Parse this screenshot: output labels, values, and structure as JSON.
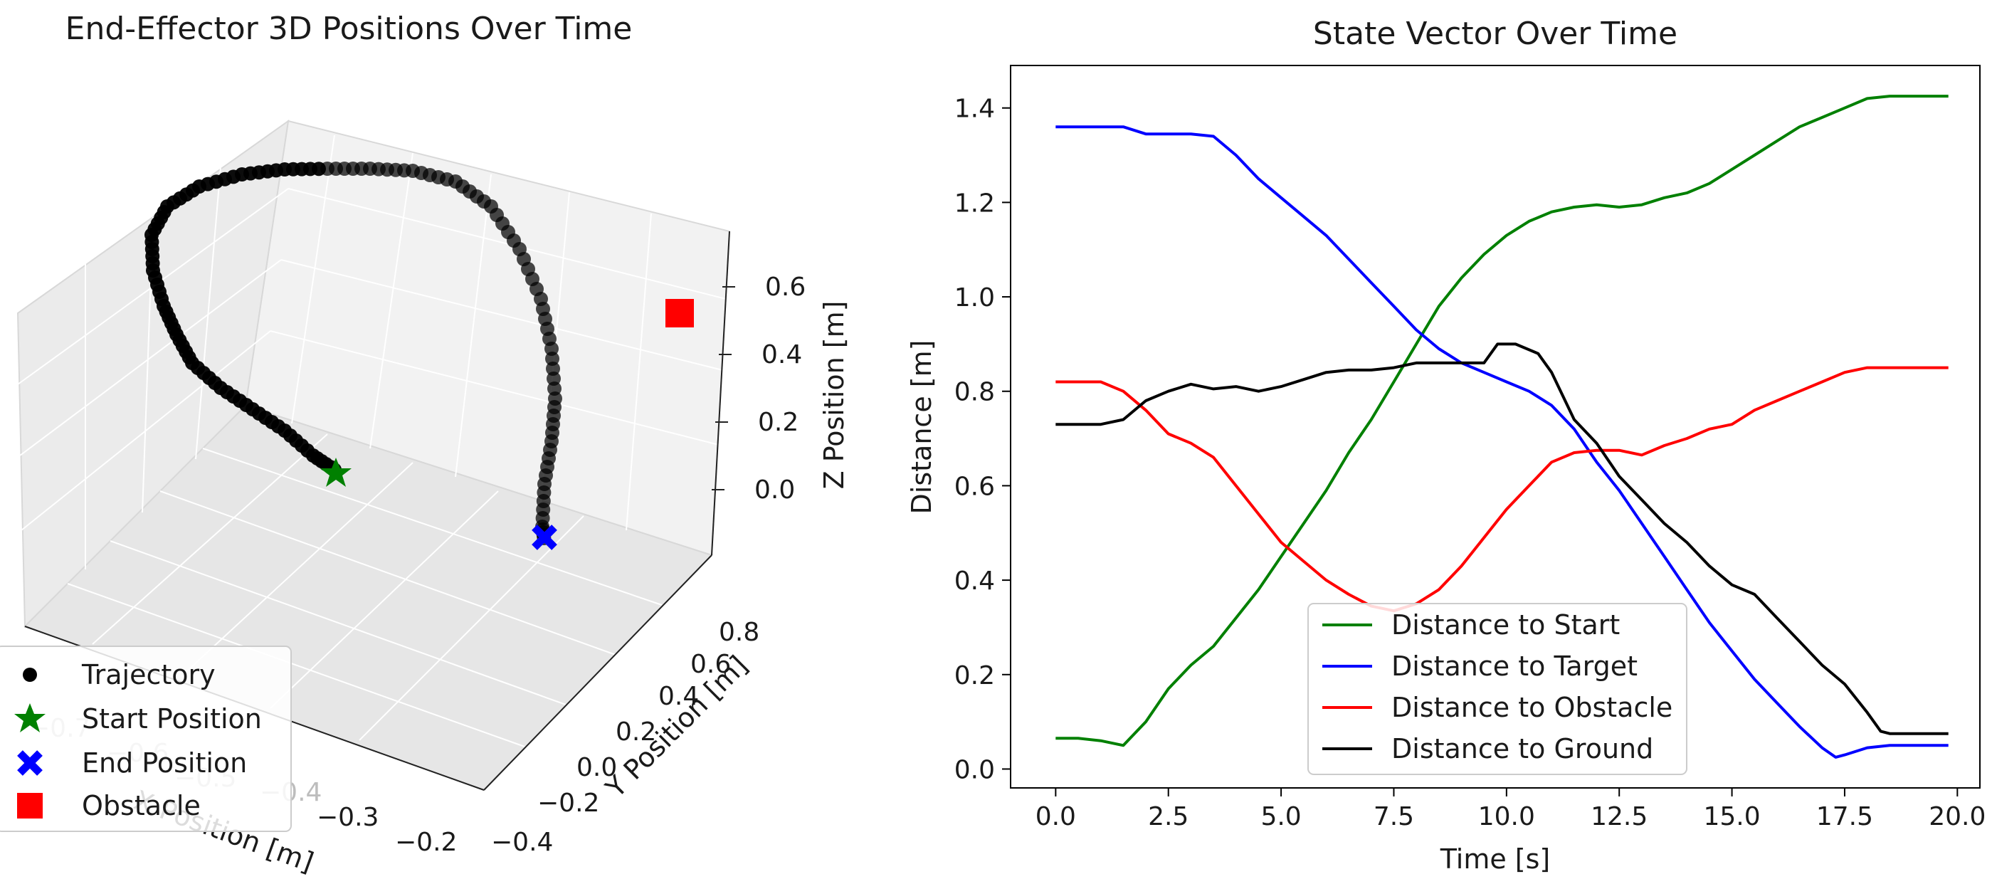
{
  "chart_data": [
    {
      "type": "scatter3d",
      "title": "End-Effector 3D Positions Over Time",
      "xlabel": "X Position [m]",
      "ylabel": "Y Position [m]",
      "zlabel": "Z Position [m]",
      "x_ticks": [
        "−0.7",
        "−0.6",
        "−0.5",
        "−0.4",
        "−0.3",
        "−0.2"
      ],
      "y_ticks": [
        "−0.4",
        "−0.2",
        "0.0",
        "0.2",
        "0.4",
        "0.6",
        "0.8"
      ],
      "z_ticks": [
        "0.0",
        "0.2",
        "0.4",
        "0.6"
      ],
      "legend": [
        {
          "label": "Trajectory",
          "marker": "circle",
          "color": "#000000"
        },
        {
          "label": "Start Position",
          "marker": "star",
          "color": "#008000"
        },
        {
          "label": "End Position",
          "marker": "x",
          "color": "#0000ff"
        },
        {
          "label": "Obstacle",
          "marker": "square",
          "color": "#ff0000"
        }
      ],
      "trajectory_xyz": [
        [
          -0.55,
          0.05,
          0.0
        ],
        [
          -0.58,
          0.08,
          0.05
        ],
        [
          -0.6,
          0.12,
          0.1
        ],
        [
          -0.63,
          0.16,
          0.15
        ],
        [
          -0.65,
          0.2,
          0.2
        ],
        [
          -0.67,
          0.24,
          0.26
        ],
        [
          -0.68,
          0.28,
          0.32
        ],
        [
          -0.68,
          0.32,
          0.4
        ],
        [
          -0.67,
          0.36,
          0.48
        ],
        [
          -0.65,
          0.4,
          0.56
        ],
        [
          -0.63,
          0.44,
          0.62
        ],
        [
          -0.6,
          0.48,
          0.66
        ],
        [
          -0.56,
          0.52,
          0.69
        ],
        [
          -0.52,
          0.56,
          0.7
        ],
        [
          -0.48,
          0.58,
          0.7
        ],
        [
          -0.44,
          0.58,
          0.69
        ],
        [
          -0.4,
          0.56,
          0.66
        ],
        [
          -0.36,
          0.52,
          0.62
        ],
        [
          -0.33,
          0.48,
          0.55
        ],
        [
          -0.31,
          0.44,
          0.46
        ],
        [
          -0.3,
          0.4,
          0.36
        ],
        [
          -0.3,
          0.36,
          0.26
        ],
        [
          -0.3,
          0.32,
          0.16
        ],
        [
          -0.3,
          0.28,
          0.08
        ],
        [
          -0.3,
          0.25,
          0.02
        ],
        [
          -0.3,
          0.24,
          0.0
        ]
      ],
      "start": [
        -0.55,
        0.05,
        0.0
      ],
      "end": [
        -0.3,
        0.24,
        0.0
      ],
      "obstacle": [
        -0.25,
        0.7,
        0.55
      ]
    },
    {
      "type": "line",
      "title": "State Vector Over Time",
      "xlabel": "Time [s]",
      "ylabel": "Distance [m]",
      "xlim": [
        -1.0,
        20.5
      ],
      "ylim": [
        -0.04,
        1.49
      ],
      "x_ticks": [
        "0.0",
        "2.5",
        "5.0",
        "7.5",
        "10.0",
        "12.5",
        "15.0",
        "17.5",
        "20.0"
      ],
      "y_ticks": [
        "0.0",
        "0.2",
        "0.4",
        "0.6",
        "0.8",
        "1.0",
        "1.2",
        "1.4"
      ],
      "legend_position": "lower-center",
      "series": [
        {
          "name": "Distance to Start",
          "color": "#008000",
          "x": [
            0,
            0.5,
            1.0,
            1.5,
            2.0,
            2.5,
            3.0,
            3.5,
            4.0,
            4.5,
            5.0,
            5.5,
            6.0,
            6.5,
            7.0,
            7.5,
            8.0,
            8.5,
            9.0,
            9.5,
            10.0,
            10.5,
            11.0,
            11.5,
            12.0,
            12.5,
            13.0,
            13.5,
            14.0,
            14.5,
            15.0,
            15.5,
            16.0,
            16.5,
            17.0,
            17.5,
            18.0,
            18.5,
            19.0,
            19.5,
            19.8
          ],
          "y": [
            0.065,
            0.065,
            0.06,
            0.05,
            0.1,
            0.17,
            0.22,
            0.26,
            0.32,
            0.38,
            0.45,
            0.52,
            0.59,
            0.67,
            0.74,
            0.82,
            0.9,
            0.98,
            1.04,
            1.09,
            1.13,
            1.16,
            1.18,
            1.19,
            1.195,
            1.19,
            1.195,
            1.21,
            1.22,
            1.24,
            1.27,
            1.3,
            1.33,
            1.36,
            1.38,
            1.4,
            1.42,
            1.425,
            1.425,
            1.425,
            1.425
          ]
        },
        {
          "name": "Distance to Target",
          "color": "#0000ff",
          "x": [
            0,
            0.5,
            1.0,
            1.5,
            2.0,
            2.5,
            3.0,
            3.5,
            4.0,
            4.5,
            5.0,
            5.5,
            6.0,
            6.5,
            7.0,
            7.5,
            8.0,
            8.5,
            9.0,
            9.5,
            10.0,
            10.5,
            11.0,
            11.5,
            12.0,
            12.5,
            13.0,
            13.5,
            14.0,
            14.5,
            15.0,
            15.5,
            16.0,
            16.5,
            17.0,
            17.3,
            17.5,
            18.0,
            18.5,
            19.0,
            19.5,
            19.8
          ],
          "y": [
            1.36,
            1.36,
            1.36,
            1.36,
            1.345,
            1.345,
            1.345,
            1.34,
            1.3,
            1.25,
            1.21,
            1.17,
            1.13,
            1.08,
            1.03,
            0.98,
            0.93,
            0.89,
            0.86,
            0.84,
            0.82,
            0.8,
            0.77,
            0.72,
            0.65,
            0.59,
            0.52,
            0.45,
            0.38,
            0.31,
            0.25,
            0.19,
            0.14,
            0.09,
            0.045,
            0.025,
            0.03,
            0.045,
            0.05,
            0.05,
            0.05,
            0.05
          ]
        },
        {
          "name": "Distance to Obstacle",
          "color": "#ff0000",
          "x": [
            0,
            0.5,
            1.0,
            1.5,
            2.0,
            2.5,
            3.0,
            3.5,
            4.0,
            4.5,
            5.0,
            5.5,
            6.0,
            6.5,
            7.0,
            7.5,
            8.0,
            8.5,
            9.0,
            9.5,
            10.0,
            10.5,
            11.0,
            11.5,
            12.0,
            12.5,
            13.0,
            13.5,
            14.0,
            14.5,
            15.0,
            15.5,
            16.0,
            16.5,
            17.0,
            17.5,
            18.0,
            18.5,
            19.0,
            19.5,
            19.8
          ],
          "y": [
            0.82,
            0.82,
            0.82,
            0.8,
            0.76,
            0.71,
            0.69,
            0.66,
            0.6,
            0.54,
            0.48,
            0.44,
            0.4,
            0.37,
            0.345,
            0.335,
            0.35,
            0.38,
            0.43,
            0.49,
            0.55,
            0.6,
            0.65,
            0.67,
            0.675,
            0.675,
            0.665,
            0.685,
            0.7,
            0.72,
            0.73,
            0.76,
            0.78,
            0.8,
            0.82,
            0.84,
            0.85,
            0.85,
            0.85,
            0.85,
            0.85
          ]
        },
        {
          "name": "Distance to Ground",
          "color": "#000000",
          "x": [
            0,
            0.5,
            1.0,
            1.5,
            2.0,
            2.5,
            3.0,
            3.5,
            4.0,
            4.5,
            5.0,
            5.5,
            6.0,
            6.5,
            7.0,
            7.5,
            8.0,
            8.5,
            9.0,
            9.5,
            9.8,
            10.2,
            10.7,
            11.0,
            11.5,
            12.0,
            12.5,
            13.0,
            13.5,
            14.0,
            14.5,
            15.0,
            15.5,
            16.0,
            16.5,
            17.0,
            17.5,
            18.0,
            18.3,
            18.5,
            19.0,
            19.5,
            19.8
          ],
          "y": [
            0.73,
            0.73,
            0.73,
            0.74,
            0.78,
            0.8,
            0.815,
            0.805,
            0.81,
            0.8,
            0.81,
            0.825,
            0.84,
            0.845,
            0.845,
            0.85,
            0.86,
            0.86,
            0.86,
            0.86,
            0.9,
            0.9,
            0.88,
            0.84,
            0.74,
            0.69,
            0.62,
            0.57,
            0.52,
            0.48,
            0.43,
            0.39,
            0.37,
            0.32,
            0.27,
            0.22,
            0.18,
            0.12,
            0.08,
            0.075,
            0.075,
            0.075,
            0.075
          ]
        }
      ]
    }
  ]
}
